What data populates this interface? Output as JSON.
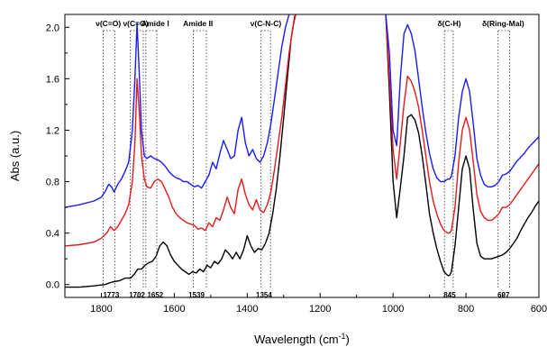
{
  "chart_data": {
    "type": "line",
    "xlabel": "Wavelength (cm",
    "xlabel_sup": "-1",
    "xlabel_end": ")",
    "ylabel": "Abs (a.u.)",
    "xlim": [
      1900,
      600
    ],
    "xaxis": "reversed",
    "ylim": [
      -0.1,
      2.1
    ],
    "x_ticks": [
      "1800",
      "1600",
      "1400",
      "1200",
      "1000",
      "800",
      "600"
    ],
    "x_tick_values": [
      1800,
      1600,
      1400,
      1200,
      1000,
      800,
      600
    ],
    "y_ticks": [
      "0.0",
      "0.4",
      "0.8",
      "1.2",
      "1.6",
      "2.0"
    ],
    "y_tick_values": [
      0.0,
      0.4,
      0.8,
      1.2,
      1.6,
      2.0
    ],
    "grid": false,
    "legend": "none",
    "band_labels": [
      {
        "text": "ν(C=O)",
        "x": 1781
      },
      {
        "text": "ν(C=O)",
        "x": 1706
      },
      {
        "text": "Amide I",
        "x": 1652
      },
      {
        "text": "Amide II",
        "x": 1535
      },
      {
        "text": "ν(C-N-C)",
        "x": 1349
      },
      {
        "text": "δ(C-H)",
        "x": 846
      },
      {
        "text": "δ(Ring-Mal)",
        "x": 698
      }
    ],
    "bands": [
      [
        1795,
        1763
      ],
      [
        1721,
        1685
      ],
      [
        1678,
        1648
      ],
      [
        1548,
        1512
      ],
      [
        1362,
        1336
      ],
      [
        859,
        835
      ],
      [
        712,
        680
      ]
    ],
    "wavenumber_labels": [
      {
        "text": "1773",
        "x": 1773
      },
      {
        "text": "1702",
        "x": 1702
      },
      {
        "text": "1652",
        "x": 1652
      },
      {
        "text": "1539",
        "x": 1539
      },
      {
        "text": "1354",
        "x": 1354
      },
      {
        "text": "845",
        "x": 845
      },
      {
        "text": "697",
        "x": 697
      }
    ],
    "series": [
      {
        "color": "#000000",
        "segments": [
          {
            "x": [
              1900,
              1860,
              1820,
              1790,
              1770,
              1750,
              1735,
              1720,
              1710,
              1700,
              1690,
              1680,
              1670,
              1660,
              1650,
              1640,
              1630,
              1620,
              1610,
              1600,
              1590,
              1580,
              1570,
              1560,
              1550,
              1540,
              1530,
              1520,
              1510,
              1500,
              1490,
              1480,
              1470,
              1460,
              1450,
              1440,
              1430,
              1420,
              1410,
              1400,
              1390,
              1380,
              1370,
              1360,
              1350,
              1340,
              1330,
              1320,
              1310,
              1300,
              1290,
              1280,
              1270,
              1265
            ],
            "y": [
              -0.02,
              -0.02,
              -0.01,
              0.0,
              0.02,
              0.03,
              0.05,
              0.05,
              0.08,
              0.12,
              0.12,
              0.15,
              0.17,
              0.18,
              0.22,
              0.3,
              0.33,
              0.3,
              0.23,
              0.18,
              0.15,
              0.12,
              0.1,
              0.08,
              0.1,
              0.09,
              0.12,
              0.1,
              0.15,
              0.13,
              0.18,
              0.16,
              0.2,
              0.27,
              0.24,
              0.2,
              0.25,
              0.2,
              0.27,
              0.38,
              0.3,
              0.25,
              0.28,
              0.27,
              0.32,
              0.4,
              0.55,
              0.75,
              1.0,
              1.3,
              1.6,
              1.9,
              2.08,
              2.12
            ]
          },
          {
            "x": [
              1020,
              1010,
              1000,
              990,
              980,
              970,
              960,
              950,
              940,
              930,
              920,
              910,
              900,
              890,
              880,
              870,
              860,
              850,
              845,
              840,
              830,
              820,
              810,
              800,
              790,
              780,
              770,
              760,
              750,
              740,
              730,
              720,
              710,
              700,
              690,
              680,
              670,
              660,
              650,
              640,
              630,
              620,
              610,
              600
            ],
            "y": [
              2.1,
              1.5,
              0.8,
              0.52,
              0.75,
              1.0,
              1.3,
              1.32,
              1.28,
              1.18,
              1.0,
              0.78,
              0.55,
              0.4,
              0.28,
              0.18,
              0.1,
              0.07,
              0.07,
              0.1,
              0.3,
              0.6,
              0.9,
              1.0,
              0.9,
              0.58,
              0.32,
              0.22,
              0.2,
              0.2,
              0.2,
              0.21,
              0.22,
              0.23,
              0.25,
              0.28,
              0.32,
              0.36,
              0.42,
              0.47,
              0.52,
              0.56,
              0.61,
              0.65
            ]
          }
        ]
      },
      {
        "color": "#e41a1c",
        "segments": [
          {
            "x": [
              1900,
              1860,
              1820,
              1800,
              1785,
              1775,
              1765,
              1755,
              1745,
              1735,
              1725,
              1715,
              1708,
              1702,
              1696,
              1690,
              1682,
              1675,
              1665,
              1655,
              1645,
              1635,
              1625,
              1615,
              1605,
              1595,
              1585,
              1575,
              1565,
              1555,
              1545,
              1535,
              1525,
              1515,
              1505,
              1495,
              1485,
              1475,
              1465,
              1455,
              1445,
              1435,
              1425,
              1415,
              1405,
              1395,
              1385,
              1375,
              1365,
              1355,
              1345,
              1335,
              1325,
              1315,
              1305,
              1295,
              1285,
              1275,
              1265
            ],
            "y": [
              0.3,
              0.31,
              0.33,
              0.36,
              0.4,
              0.45,
              0.42,
              0.45,
              0.5,
              0.55,
              0.62,
              0.8,
              1.1,
              1.6,
              1.35,
              1.0,
              0.82,
              0.76,
              0.75,
              0.8,
              0.82,
              0.8,
              0.74,
              0.68,
              0.6,
              0.55,
              0.52,
              0.5,
              0.48,
              0.47,
              0.46,
              0.43,
              0.44,
              0.42,
              0.48,
              0.45,
              0.52,
              0.5,
              0.58,
              0.68,
              0.6,
              0.55,
              0.74,
              0.82,
              0.7,
              0.62,
              0.58,
              0.66,
              0.58,
              0.56,
              0.62,
              0.72,
              0.9,
              1.1,
              1.3,
              1.55,
              1.8,
              2.0,
              2.12
            ]
          },
          {
            "x": [
              1020,
              1010,
              1000,
              990,
              980,
              970,
              960,
              950,
              940,
              930,
              920,
              910,
              900,
              890,
              880,
              870,
              860,
              850,
              845,
              840,
              830,
              820,
              810,
              800,
              790,
              780,
              770,
              760,
              750,
              740,
              730,
              720,
              710,
              700,
              690,
              680,
              670,
              660,
              650,
              640,
              630,
              620,
              610,
              600
            ],
            "y": [
              2.1,
              1.6,
              1.05,
              0.82,
              1.1,
              1.4,
              1.62,
              1.58,
              1.5,
              1.38,
              1.2,
              1.0,
              0.8,
              0.65,
              0.55,
              0.47,
              0.42,
              0.4,
              0.4,
              0.42,
              0.6,
              0.95,
              1.2,
              1.3,
              1.2,
              0.95,
              0.7,
              0.57,
              0.52,
              0.5,
              0.5,
              0.52,
              0.55,
              0.6,
              0.6,
              0.62,
              0.66,
              0.7,
              0.74,
              0.78,
              0.82,
              0.86,
              0.9,
              0.94
            ]
          }
        ]
      },
      {
        "color": "#1a1aff",
        "segments": [
          {
            "x": [
              1900,
              1860,
              1820,
              1800,
              1790,
              1780,
              1772,
              1765,
              1755,
              1745,
              1735,
              1725,
              1715,
              1708,
              1702,
              1696,
              1690,
              1682,
              1675,
              1665,
              1655,
              1645,
              1635,
              1625,
              1615,
              1605,
              1595,
              1585,
              1575,
              1565,
              1555,
              1545,
              1535,
              1525,
              1515,
              1505,
              1495,
              1485,
              1475,
              1465,
              1455,
              1445,
              1435,
              1425,
              1415,
              1405,
              1395,
              1385,
              1375,
              1365,
              1355,
              1345,
              1335,
              1325,
              1315,
              1305,
              1295,
              1285,
              1275,
              1265
            ],
            "y": [
              0.6,
              0.62,
              0.65,
              0.68,
              0.72,
              0.78,
              0.76,
              0.72,
              0.78,
              0.82,
              0.88,
              0.95,
              1.2,
              1.6,
              2.03,
              1.65,
              1.2,
              1.0,
              0.98,
              1.0,
              0.98,
              0.97,
              0.95,
              0.92,
              0.88,
              0.85,
              0.83,
              0.82,
              0.8,
              0.8,
              0.78,
              0.76,
              0.77,
              0.75,
              0.8,
              0.85,
              0.95,
              0.9,
              1.02,
              1.12,
              1.05,
              0.98,
              1.0,
              1.2,
              1.3,
              1.1,
              1.0,
              1.05,
              0.98,
              0.95,
              1.0,
              1.1,
              1.25,
              1.45,
              1.65,
              1.85,
              2.0,
              2.1,
              2.12,
              2.12
            ]
          },
          {
            "x": [
              1020,
              1010,
              1000,
              990,
              980,
              970,
              960,
              950,
              940,
              930,
              920,
              910,
              900,
              890,
              880,
              870,
              860,
              850,
              845,
              840,
              830,
              820,
              810,
              800,
              790,
              780,
              770,
              760,
              750,
              740,
              730,
              720,
              710,
              700,
              690,
              680,
              670,
              660,
              650,
              640,
              630,
              620,
              610,
              600
            ],
            "y": [
              2.1,
              1.8,
              1.2,
              1.08,
              1.6,
              1.95,
              2.02,
              1.95,
              1.82,
              1.6,
              1.38,
              1.18,
              1.02,
              0.9,
              0.83,
              0.8,
              0.8,
              0.82,
              0.82,
              0.84,
              1.0,
              1.3,
              1.5,
              1.6,
              1.5,
              1.25,
              0.98,
              0.85,
              0.78,
              0.76,
              0.76,
              0.77,
              0.8,
              0.85,
              0.86,
              0.88,
              0.92,
              0.96,
              0.99,
              1.02,
              1.06,
              1.09,
              1.12,
              1.15
            ]
          }
        ]
      }
    ]
  }
}
